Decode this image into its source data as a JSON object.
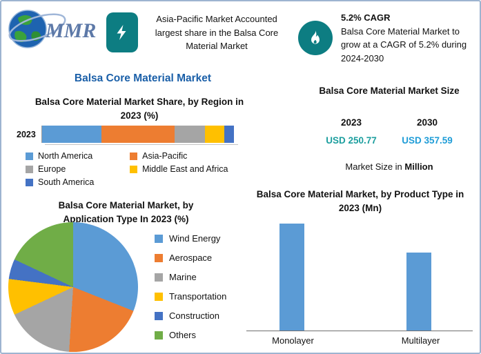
{
  "header": {
    "logo": {
      "text": "MMR"
    },
    "callout_left": {
      "icon": "lightning-bolt-icon",
      "text": "Asia-Pacific Market Accounted largest share in the Balsa Core Material Market"
    },
    "callout_right": {
      "icon": "flame-icon",
      "title": "5.2% CAGR",
      "body": "Balsa Core Material Market to grow at a CAGR of 5.2% during 2024-2030"
    }
  },
  "main_title": "Balsa Core Material Market",
  "market_size": {
    "title": "Balsa Core Material Market Size",
    "years": [
      "2023",
      "2030"
    ],
    "values": [
      "USD 250.77",
      "USD 357.59"
    ],
    "note_prefix": "Market Size in ",
    "note_bold": "Million"
  },
  "colors": {
    "teal": "#0d7d82",
    "title_blue": "#1a5fa8",
    "value_2023": "#1b9e9e",
    "value_2030": "#1e9cd7"
  },
  "chart_data": [
    {
      "type": "bar",
      "subtype": "stacked-horizontal",
      "title": "Balsa Core Material Market Share, by Region in 2023 (%)",
      "categories": [
        "2023"
      ],
      "series": [
        {
          "name": "North America",
          "values": [
            31
          ],
          "color": "#5B9BD5"
        },
        {
          "name": "Asia-Pacific",
          "values": [
            38
          ],
          "color": "#ED7D31"
        },
        {
          "name": "Europe",
          "values": [
            16
          ],
          "color": "#A5A5A5"
        },
        {
          "name": "Middle East and Africa",
          "values": [
            10
          ],
          "color": "#FFC000"
        },
        {
          "name": "South America",
          "values": [
            5
          ],
          "color": "#4472C4"
        }
      ],
      "xlim": [
        0,
        100
      ],
      "legend_position": "bottom"
    },
    {
      "type": "pie",
      "title": "Balsa Core Material Market, by Application Type In 2023 (%)",
      "labels": [
        "Wind Energy",
        "Aerospace",
        "Marine",
        "Transportation",
        "Construction",
        "Others"
      ],
      "values": [
        31,
        20,
        17,
        9,
        5,
        18
      ],
      "colors": [
        "#5B9BD5",
        "#ED7D31",
        "#A5A5A5",
        "#FFC000",
        "#4472C4",
        "#70AD47"
      ],
      "legend_position": "right"
    },
    {
      "type": "bar",
      "title": "Balsa Core Material Market, by Product Type in 2023 (Mn)",
      "categories": [
        "Monolayer",
        "Multilayer"
      ],
      "values": [
        150,
        110
      ],
      "ylim": [
        0,
        160
      ],
      "color": "#5B9BD5",
      "legend_position": "none"
    }
  ]
}
